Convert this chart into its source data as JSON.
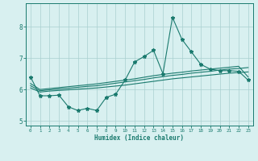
{
  "xlabel": "Humidex (Indice chaleur)",
  "x_values": [
    0,
    1,
    2,
    3,
    4,
    5,
    6,
    7,
    8,
    9,
    10,
    11,
    12,
    13,
    14,
    15,
    16,
    17,
    18,
    19,
    20,
    21,
    22,
    23
  ],
  "y_main": [
    6.4,
    5.8,
    5.8,
    5.82,
    5.45,
    5.33,
    5.4,
    5.33,
    5.75,
    5.85,
    6.3,
    6.88,
    7.05,
    7.25,
    6.5,
    8.3,
    7.6,
    7.2,
    6.8,
    6.65,
    6.6,
    6.6,
    6.58,
    6.3
  ],
  "y_line1": [
    6.05,
    5.92,
    5.95,
    5.97,
    5.99,
    6.01,
    6.03,
    6.05,
    6.08,
    6.11,
    6.14,
    6.18,
    6.22,
    6.26,
    6.3,
    6.34,
    6.37,
    6.4,
    6.43,
    6.46,
    6.49,
    6.52,
    6.54,
    6.56
  ],
  "y_line2": [
    6.12,
    5.96,
    5.99,
    6.02,
    6.04,
    6.07,
    6.1,
    6.12,
    6.16,
    6.2,
    6.24,
    6.28,
    6.32,
    6.37,
    6.41,
    6.45,
    6.48,
    6.52,
    6.55,
    6.58,
    6.62,
    6.65,
    6.67,
    6.7
  ],
  "y_line3": [
    6.19,
    6.0,
    6.03,
    6.06,
    6.09,
    6.12,
    6.15,
    6.18,
    6.22,
    6.26,
    6.3,
    6.34,
    6.39,
    6.44,
    6.48,
    6.52,
    6.55,
    6.59,
    6.62,
    6.65,
    6.68,
    6.71,
    6.74,
    6.4
  ],
  "ylim": [
    4.85,
    8.75
  ],
  "yticks": [
    5,
    6,
    7,
    8
  ],
  "xticks": [
    0,
    1,
    2,
    3,
    4,
    5,
    6,
    7,
    8,
    9,
    10,
    11,
    12,
    13,
    14,
    15,
    16,
    17,
    18,
    19,
    20,
    21,
    22,
    23
  ],
  "line_color": "#1a7a6e",
  "bg_color": "#d8f0f0",
  "grid_color": "#aacfcf"
}
